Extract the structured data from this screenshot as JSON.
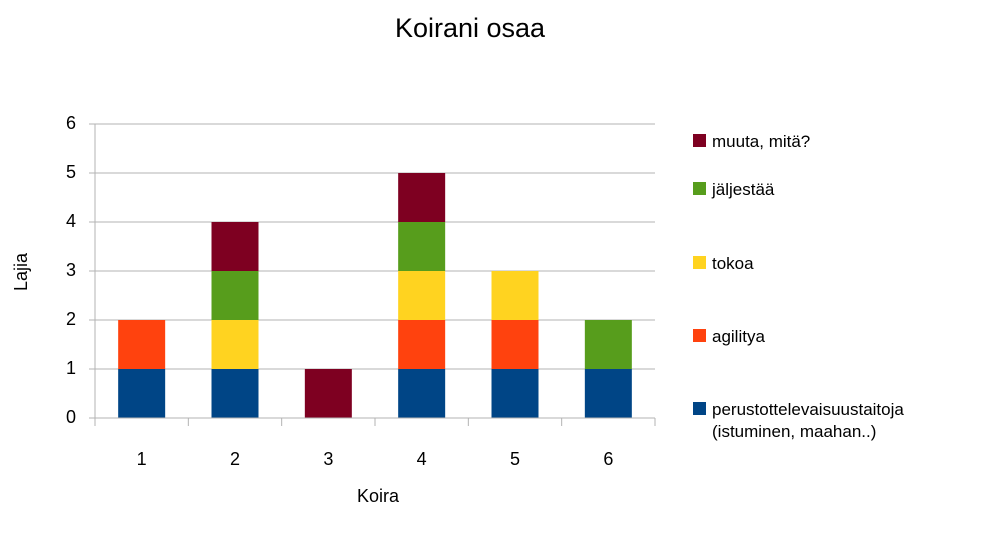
{
  "chart_data": {
    "type": "stacked_bar",
    "title": "Koirani osaa",
    "x_label": "Koira",
    "y_label": "Lajia",
    "categories": [
      "1",
      "2",
      "3",
      "4",
      "5",
      "6"
    ],
    "series": [
      {
        "name": "perustottelevaisuustaitoja (istuminen, maahan..)",
        "color": "#004586",
        "values": [
          1,
          1,
          0,
          1,
          1,
          1
        ]
      },
      {
        "name": "agilitya",
        "color": "#ff420e",
        "values": [
          1,
          0,
          0,
          1,
          1,
          0
        ]
      },
      {
        "name": "tokoa",
        "color": "#ffd320",
        "values": [
          0,
          1,
          0,
          1,
          1,
          0
        ]
      },
      {
        "name": "jäljestää",
        "color": "#579d1c",
        "values": [
          0,
          1,
          0,
          1,
          0,
          1
        ]
      },
      {
        "name": "muuta, mitä?",
        "color": "#7e0021",
        "values": [
          0,
          1,
          1,
          1,
          0,
          0
        ]
      }
    ],
    "ylim": [
      0,
      6
    ],
    "yticks": [
      0,
      1,
      2,
      3,
      4,
      5,
      6
    ],
    "grid": true,
    "legend": "right"
  }
}
